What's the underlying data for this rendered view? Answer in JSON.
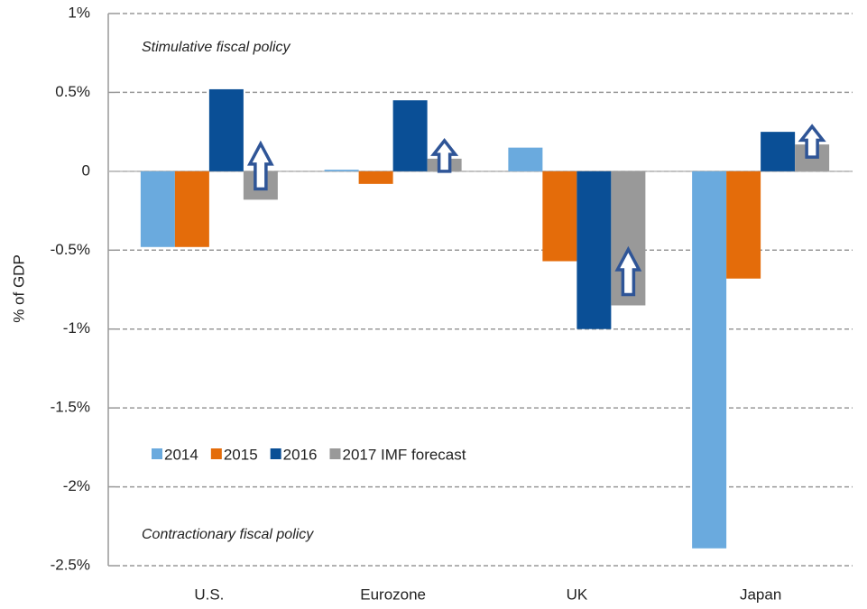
{
  "chart_data": {
    "type": "bar",
    "y_label": "% of GDP",
    "annotations": [
      "Stimulative fiscal policy",
      "Contractionary fiscal policy"
    ],
    "categories": [
      "U.S.",
      "Eurozone",
      "UK",
      "Japan"
    ],
    "series": [
      {
        "name": "2014",
        "color": "#6aaade",
        "values": [
          -0.48,
          0.01,
          0.15,
          -2.39
        ]
      },
      {
        "name": "2015",
        "color": "#e46c0a",
        "values": [
          -0.48,
          -0.08,
          -0.57,
          -0.68
        ]
      },
      {
        "name": "2016",
        "color": "#0a4f96",
        "values": [
          0.52,
          0.45,
          -1.0,
          0.25
        ]
      },
      {
        "name": "2017 IMF forecast",
        "color": "#999999",
        "values": [
          -0.18,
          0.08,
          -0.85,
          0.17
        ]
      }
    ],
    "ylim": [
      -2.5,
      1
    ],
    "yticks": [
      {
        "value": -2.5,
        "label": "-2.5%"
      },
      {
        "value": -2,
        "label": "-2%"
      },
      {
        "value": -1.5,
        "label": "-1.5%"
      },
      {
        "value": -1,
        "label": "-1%"
      },
      {
        "value": -0.5,
        "label": "-0.5%"
      },
      0,
      {
        "value": 0.5,
        "label": "0.5%"
      },
      {
        "value": 1,
        "label": "1%"
      }
    ],
    "grid": true
  }
}
